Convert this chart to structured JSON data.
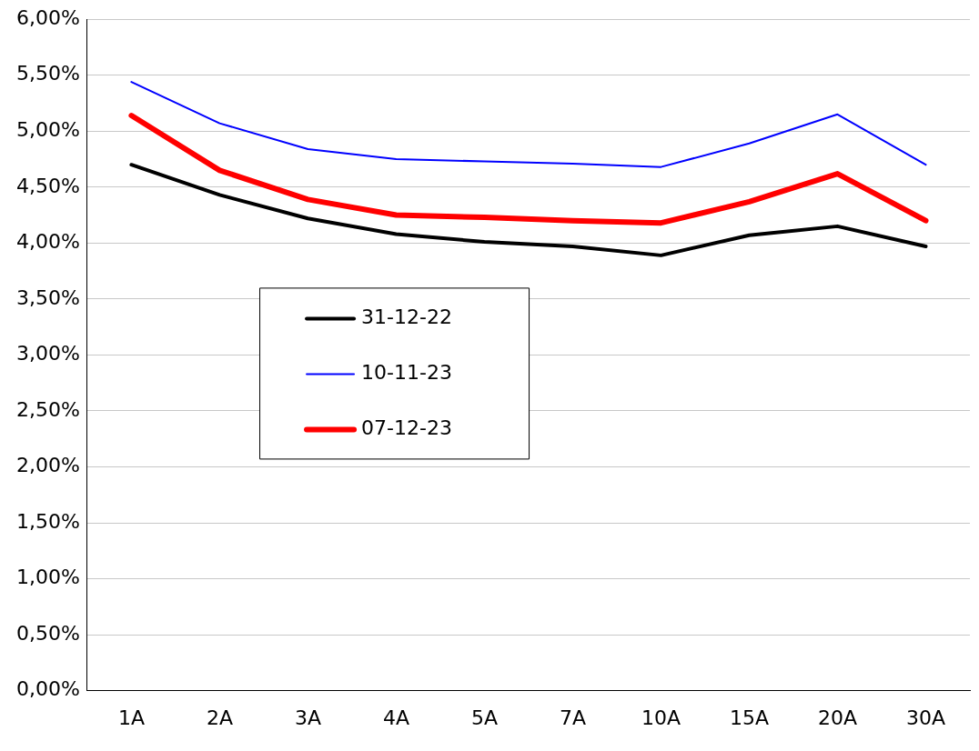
{
  "chart_data": {
    "type": "line",
    "categories": [
      "1A",
      "2A",
      "3A",
      "4A",
      "5A",
      "7A",
      "10A",
      "15A",
      "20A",
      "30A"
    ],
    "series": [
      {
        "name": "31-12-22",
        "color": "#000000",
        "values": [
          4.7,
          4.43,
          4.22,
          4.08,
          4.01,
          3.97,
          3.89,
          4.07,
          4.15,
          3.97
        ]
      },
      {
        "name": "10-11-23",
        "color": "#0000ff",
        "values": [
          5.44,
          5.07,
          4.84,
          4.75,
          4.73,
          4.71,
          4.68,
          4.89,
          5.15,
          4.7
        ]
      },
      {
        "name": "07-12-23",
        "color": "#ff0000",
        "values": [
          5.14,
          4.65,
          4.39,
          4.25,
          4.23,
          4.2,
          4.18,
          4.37,
          4.62,
          4.2
        ]
      }
    ],
    "ylim": [
      0,
      6
    ],
    "yticks": [
      {
        "value": 0,
        "label": "0,00%"
      },
      {
        "value": 0.5,
        "label": "0,50%"
      },
      {
        "value": 1,
        "label": "1,00%"
      },
      {
        "value": 1.5,
        "label": "1,50%"
      },
      {
        "value": 2,
        "label": "2,00%"
      },
      {
        "value": 2.5,
        "label": "2,50%"
      },
      {
        "value": 3,
        "label": "3,00%"
      },
      {
        "value": 3.5,
        "label": "3,50%"
      },
      {
        "value": 4,
        "label": "4,00%"
      },
      {
        "value": 4.5,
        "label": "4,50%"
      },
      {
        "value": 5,
        "label": "5,00%"
      },
      {
        "value": 5.5,
        "label": "5,50%"
      },
      {
        "value": 6,
        "label": "6,00%"
      }
    ],
    "grid": "y",
    "legend": "center left",
    "marker": "none",
    "line_style": "solid"
  }
}
